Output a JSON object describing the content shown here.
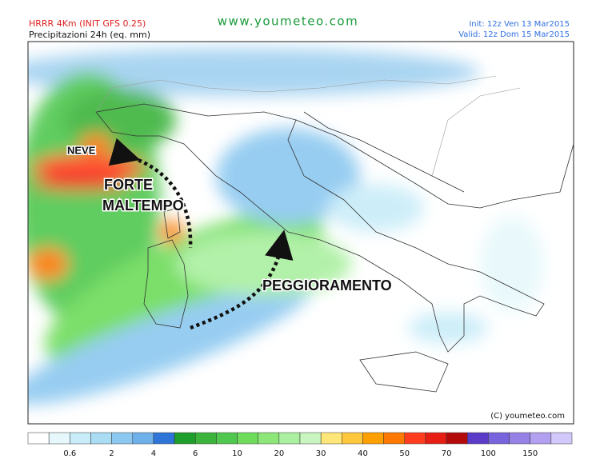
{
  "header": {
    "model": "HRRR 4Km (INIT GFS 0.25)",
    "variable": "Precipitazioni 24h (eq. mm)",
    "site": "www.youmeteo.com",
    "init": "Init: 12z Ven 13 Mar2015",
    "valid": "Valid: 12z Dom 15 Mar2015"
  },
  "annotations": {
    "snow": "NEVE",
    "storm": [
      "FORTE",
      "MALTEMPO"
    ],
    "worsening": "PEGGIORAMENTO"
  },
  "copyright": "(C) youmeteo.com",
  "legend": {
    "colors": [
      "#ffffff",
      "#e6f8fb",
      "#c8ecf8",
      "#aadcf4",
      "#8cc8f0",
      "#6eb0ea",
      "#2f74d8",
      "#1e9e2a",
      "#3cb43c",
      "#50c850",
      "#6edc5a",
      "#8ce678",
      "#aaf0a0",
      "#c8f5c0",
      "#ffe678",
      "#ffc83c",
      "#ffa000",
      "#ff7800",
      "#ff3c1e",
      "#e61e14",
      "#b40a0a",
      "#5a3cc8",
      "#7864dc",
      "#9682e6",
      "#b4a0f0",
      "#d2c8fa"
    ],
    "ticks": [
      0.6,
      2,
      4,
      6,
      10,
      20,
      30,
      40,
      50,
      70,
      100,
      150
    ]
  }
}
